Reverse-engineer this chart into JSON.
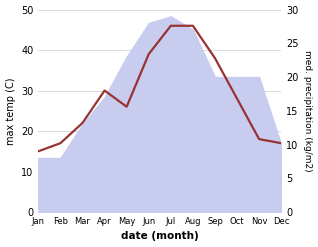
{
  "months": [
    "Jan",
    "Feb",
    "Mar",
    "Apr",
    "May",
    "Jun",
    "Jul",
    "Aug",
    "Sep",
    "Oct",
    "Nov",
    "Dec"
  ],
  "temp": [
    15.0,
    17.0,
    22.0,
    30.0,
    26.0,
    39.0,
    46.0,
    46.0,
    38.0,
    28.0,
    18.0,
    17.0
  ],
  "precip": [
    8.0,
    8.0,
    13.0,
    17.0,
    23.0,
    28.0,
    29.0,
    27.0,
    20.0,
    20.0,
    20.0,
    10.0
  ],
  "temp_color": "#993333",
  "precip_fill_color": "#c8cdf0",
  "bg_color": "#ffffff",
  "xlabel": "date (month)",
  "ylabel_left": "max temp (C)",
  "ylabel_right": "med. precipitation (kg/m2)",
  "ylim_left": [
    0,
    50
  ],
  "ylim_right": [
    0,
    30
  ],
  "temp_lw": 1.6,
  "grid_color": "#cccccc"
}
